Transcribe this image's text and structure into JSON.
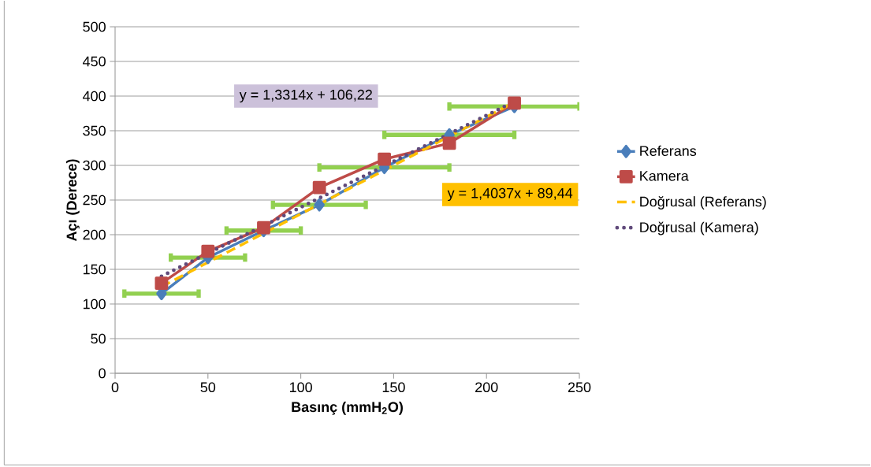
{
  "chart_data": {
    "type": "line",
    "xlabel": "Basınç (mmH$_{2}$O)",
    "ylabel": "Açı (Derece)",
    "xlim": [
      0,
      250
    ],
    "xticks": [
      0,
      50,
      100,
      150,
      200,
      250
    ],
    "ylim": [
      0,
      500
    ],
    "yticks": [
      0,
      50,
      100,
      150,
      200,
      250,
      300,
      350,
      400,
      450,
      500
    ],
    "grid": "y",
    "legend": "right",
    "series": [
      {
        "name": "Referans",
        "color": "#4a7ebb",
        "marker": "diamond",
        "line_style": "solid",
        "x": [
          25,
          50,
          80,
          110,
          145,
          180,
          215
        ],
        "values": [
          115,
          167,
          206,
          243,
          297,
          344,
          385
        ],
        "xerrors": [
          20,
          20,
          20,
          25,
          35,
          35,
          35
        ]
      },
      {
        "name": "Kamera",
        "color": "#be4b48",
        "marker": "square",
        "line_style": "solid",
        "x": [
          25,
          50,
          80,
          110,
          145,
          180,
          215
        ],
        "values": [
          130,
          176,
          210,
          268,
          309,
          332,
          390
        ]
      },
      {
        "name": "Doğrusal (Referans)",
        "type": "line",
        "color": "#ffc000",
        "marker": "none",
        "line_style": "dashed",
        "x": [
          25,
          215
        ],
        "values": [
          125,
          391
        ]
      },
      {
        "name": "Doğrusal (Kamera)",
        "type": "line",
        "color": "#604a7b",
        "marker": "none",
        "line_style": "dotted",
        "x": [
          25,
          215
        ],
        "values": [
          140,
          392
        ]
      }
    ],
    "annotations": [
      "y = 1,3314x + 106,22",
      "y = 1,4037x + 89,44"
    ]
  }
}
